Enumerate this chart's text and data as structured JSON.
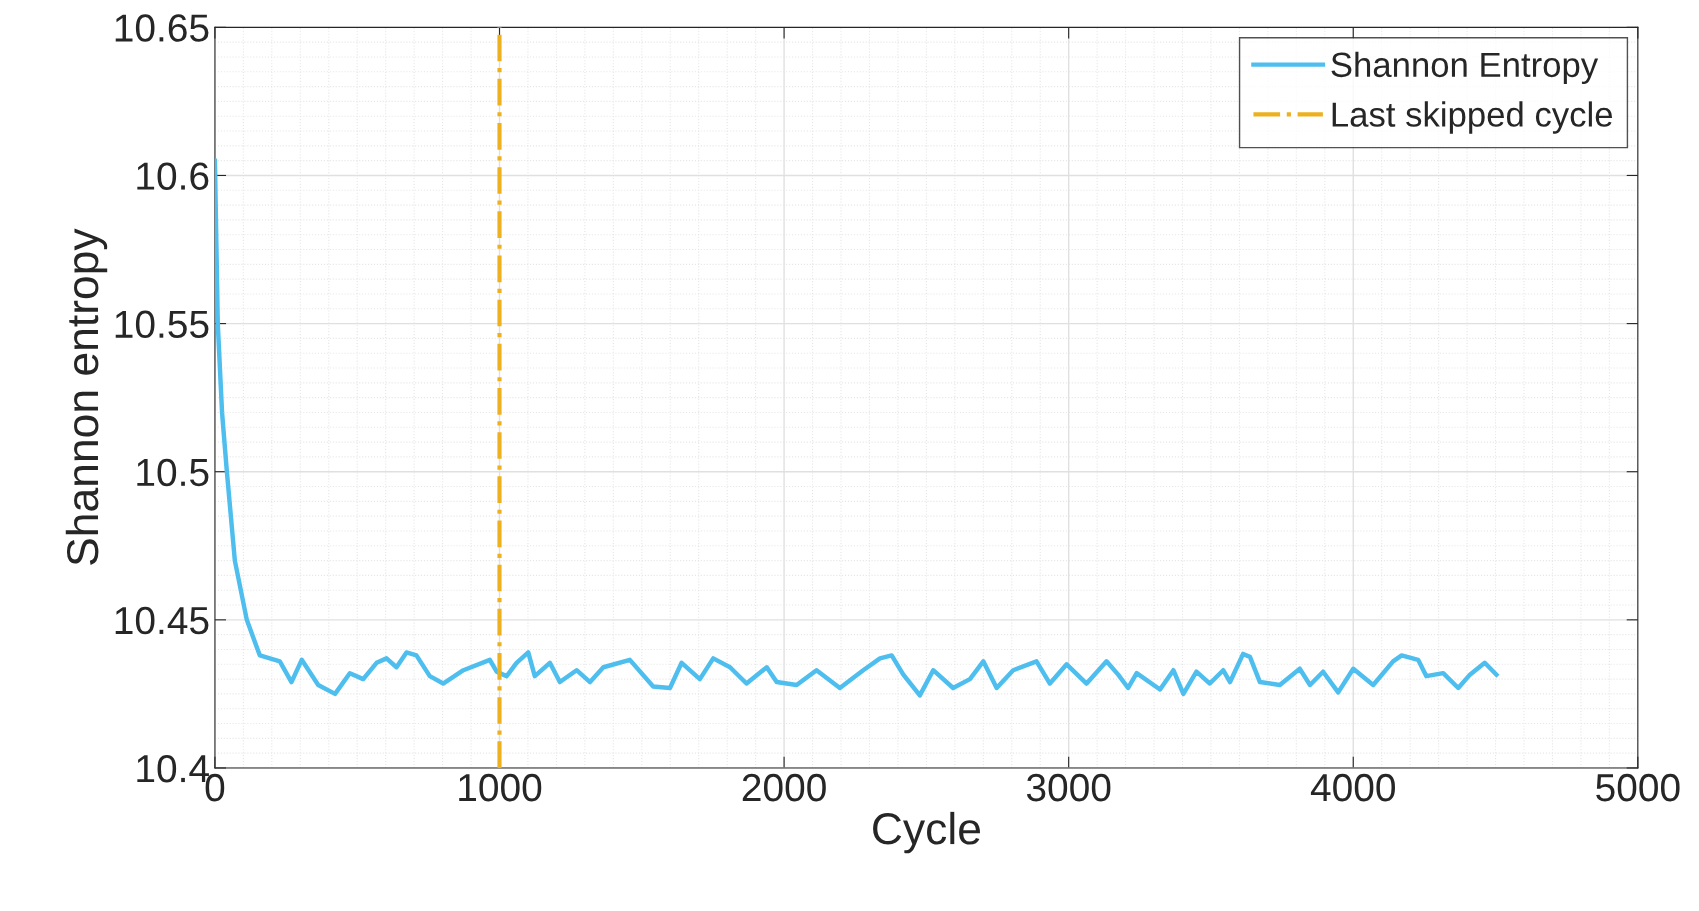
{
  "chart_data": {
    "type": "line",
    "xlabel": "Cycle",
    "ylabel": "Shannon entropy",
    "x": [
      0,
      10,
      25,
      42,
      70,
      112,
      150,
      158,
      228,
      269,
      305,
      363,
      422,
      474,
      521,
      568,
      603,
      638,
      673,
      708,
      755,
      802,
      873,
      966,
      990,
      1025,
      1060,
      1101,
      1124,
      1177,
      1212,
      1271,
      1318,
      1365,
      1458,
      1540,
      1599,
      1640,
      1704,
      1751,
      1810,
      1868,
      1939,
      1974,
      2044,
      2114,
      2196,
      2278,
      2337,
      2378,
      2419,
      2477,
      2524,
      2594,
      2653,
      2700,
      2747,
      2805,
      2887,
      2934,
      2993,
      3063,
      3133,
      3174,
      3209,
      3239,
      3321,
      3368,
      3403,
      3449,
      3496,
      3543,
      3567,
      3613,
      3637,
      3672,
      3742,
      3812,
      3848,
      3894,
      3947,
      4000,
      4070,
      4140,
      4170,
      4228,
      4257,
      4316,
      4369,
      4410,
      4462,
      4503
    ],
    "series": [
      {
        "name": "Shannon Entropy",
        "color": "#4dbeee",
        "values": [
          10.605,
          10.55,
          10.52,
          10.5,
          10.47,
          10.45,
          10.44,
          10.438,
          10.436,
          10.429,
          10.4365,
          10.428,
          10.425,
          10.432,
          10.43,
          10.4355,
          10.437,
          10.434,
          10.439,
          10.438,
          10.431,
          10.4285,
          10.433,
          10.4365,
          10.4325,
          10.431,
          10.4355,
          10.439,
          10.431,
          10.4355,
          10.429,
          10.433,
          10.429,
          10.434,
          10.4365,
          10.4275,
          10.427,
          10.4355,
          10.43,
          10.437,
          10.434,
          10.4285,
          10.434,
          10.429,
          10.428,
          10.433,
          10.427,
          10.433,
          10.437,
          10.438,
          10.4315,
          10.4245,
          10.433,
          10.427,
          10.43,
          10.436,
          10.427,
          10.433,
          10.436,
          10.4285,
          10.435,
          10.4285,
          10.436,
          10.4315,
          10.427,
          10.432,
          10.4265,
          10.433,
          10.425,
          10.4325,
          10.4285,
          10.433,
          10.429,
          10.4385,
          10.4375,
          10.429,
          10.428,
          10.4335,
          10.428,
          10.4325,
          10.4255,
          10.4335,
          10.428,
          10.436,
          10.438,
          10.4365,
          10.431,
          10.432,
          10.427,
          10.4315,
          10.4355,
          10.4315
        ]
      },
      {
        "name": "Last skipped cycle",
        "color": "#edb120",
        "line_style": "dashdot",
        "x": [
          1000,
          1000
        ],
        "values": [
          10.4,
          10.65
        ]
      }
    ],
    "xlim": [
      0,
      5000
    ],
    "xticks": [
      0,
      1000,
      2000,
      3000,
      4000,
      5000
    ],
    "ylim": [
      10.4,
      10.65
    ],
    "yticks": [
      10.4,
      10.45,
      10.5,
      10.55,
      10.6,
      10.65
    ],
    "grid": true,
    "legend": "top right",
    "line_style": "solid",
    "marker": "none"
  }
}
